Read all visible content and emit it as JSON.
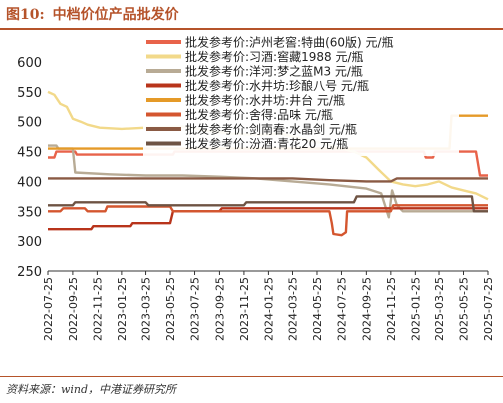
{
  "header": {
    "figure_no": "图10:",
    "title": "中档价位产品批发价"
  },
  "source": "资料来源：wind，中港证券研究所",
  "chart_data": {
    "type": "line",
    "ylim": [
      250,
      600
    ],
    "yticks": [
      250,
      300,
      350,
      400,
      450,
      500,
      550,
      600
    ],
    "xticks": [
      "2022-07-25",
      "2022-09-25",
      "2022-11-25",
      "2023-01-25",
      "2023-03-25",
      "2023-05-25",
      "2023-07-25",
      "2023-09-25",
      "2023-11-25",
      "2024-01-25",
      "2024-03-25",
      "2024-05-25",
      "2024-07-25",
      "2024-09-25",
      "2024-11-25",
      "2025-01-25",
      "2025-03-25",
      "2025-05-25",
      "2025-07-25"
    ],
    "x_start": "2022-07-25",
    "x_end": "2025-07-25",
    "grid": false,
    "legend_position": "top-center",
    "series": [
      {
        "name": "批发参考价:泸州老窖:特曲(60版) 元/瓶",
        "color": "#e8634a",
        "points": [
          [
            "2022-07-25",
            440
          ],
          [
            "2022-08-10",
            440
          ],
          [
            "2022-08-15",
            450
          ],
          [
            "2022-10-01",
            450
          ],
          [
            "2022-10-05",
            445
          ],
          [
            "2023-06-01",
            445
          ],
          [
            "2023-06-05",
            450
          ],
          [
            "2025-01-25",
            450
          ],
          [
            "2025-02-15",
            450
          ],
          [
            "2025-02-20",
            440
          ],
          [
            "2025-03-10",
            440
          ],
          [
            "2025-03-15",
            450
          ],
          [
            "2025-06-25",
            450
          ],
          [
            "2025-07-05",
            410
          ],
          [
            "2025-07-25",
            410
          ]
        ]
      },
      {
        "name": "批发参考价:习酒:窖藏1988 元/瓶",
        "color": "#f2d98a",
        "points": [
          [
            "2022-07-25",
            550
          ],
          [
            "2022-08-10",
            545
          ],
          [
            "2022-08-25",
            530
          ],
          [
            "2022-09-10",
            525
          ],
          [
            "2022-09-25",
            505
          ],
          [
            "2022-10-15",
            500
          ],
          [
            "2022-11-01",
            495
          ],
          [
            "2022-12-01",
            490
          ],
          [
            "2023-01-25",
            488
          ],
          [
            "2023-03-25",
            490
          ],
          [
            "2023-06-25",
            492
          ],
          [
            "2023-08-25",
            485
          ],
          [
            "2023-10-25",
            480
          ],
          [
            "2023-12-25",
            478
          ],
          [
            "2024-02-25",
            480
          ],
          [
            "2024-04-25",
            470
          ],
          [
            "2024-06-01",
            465
          ],
          [
            "2024-07-25",
            455
          ],
          [
            "2024-08-25",
            450
          ],
          [
            "2024-09-25",
            440
          ],
          [
            "2024-10-25",
            420
          ],
          [
            "2024-11-25",
            400
          ],
          [
            "2024-12-25",
            395
          ],
          [
            "2025-01-25",
            392
          ],
          [
            "2025-02-25",
            395
          ],
          [
            "2025-03-25",
            400
          ],
          [
            "2025-04-25",
            390
          ],
          [
            "2025-05-25",
            385
          ],
          [
            "2025-06-25",
            380
          ],
          [
            "2025-07-25",
            370
          ]
        ]
      },
      {
        "name": "批发参考价:洋河:梦之蓝M3 元/瓶",
        "color": "#b8ab95",
        "points": [
          [
            "2022-07-25",
            460
          ],
          [
            "2022-08-15",
            460
          ],
          [
            "2022-08-20",
            455
          ],
          [
            "2022-09-25",
            455
          ],
          [
            "2022-10-01",
            415
          ],
          [
            "2022-12-25",
            412
          ],
          [
            "2023-03-25",
            410
          ],
          [
            "2023-06-25",
            410
          ],
          [
            "2023-09-25",
            408
          ],
          [
            "2023-12-25",
            405
          ],
          [
            "2024-03-25",
            400
          ],
          [
            "2024-06-25",
            395
          ],
          [
            "2024-09-25",
            388
          ],
          [
            "2024-11-01",
            380
          ],
          [
            "2024-11-20",
            340
          ],
          [
            "2024-11-28",
            385
          ],
          [
            "2024-12-10",
            360
          ],
          [
            "2024-12-25",
            350
          ],
          [
            "2025-03-25",
            350
          ],
          [
            "2025-07-25",
            350
          ]
        ]
      },
      {
        "name": "批发参考价:水井坊:珍酿八号 元/瓶",
        "color": "#b8341b",
        "points": [
          [
            "2022-07-25",
            320
          ],
          [
            "2022-11-10",
            320
          ],
          [
            "2022-11-15",
            325
          ],
          [
            "2023-02-15",
            325
          ],
          [
            "2023-02-20",
            330
          ],
          [
            "2023-05-25",
            330
          ],
          [
            "2023-06-01",
            350
          ],
          [
            "2023-09-25",
            350
          ],
          [
            "2023-10-01",
            355
          ],
          [
            "2025-07-25",
            355
          ]
        ]
      },
      {
        "name": "批发参考价:水井坊:井台 元/瓶",
        "color": "#e59a28",
        "points": [
          [
            "2022-07-25",
            455
          ],
          [
            "2025-04-20",
            455
          ],
          [
            "2025-04-25",
            510
          ],
          [
            "2025-07-25",
            510
          ]
        ]
      },
      {
        "name": "批发参考价:舍得:品味 元/瓶",
        "color": "#d4562f",
        "points": [
          [
            "2022-07-25",
            350
          ],
          [
            "2022-08-25",
            350
          ],
          [
            "2022-09-01",
            355
          ],
          [
            "2022-10-25",
            355
          ],
          [
            "2022-11-01",
            350
          ],
          [
            "2022-12-15",
            350
          ],
          [
            "2022-12-20",
            358
          ],
          [
            "2023-05-25",
            358
          ],
          [
            "2023-06-01",
            350
          ],
          [
            "2024-06-25",
            350
          ],
          [
            "2024-07-01",
            330
          ],
          [
            "2024-07-05",
            312
          ],
          [
            "2024-07-25",
            310
          ],
          [
            "2024-08-05",
            315
          ],
          [
            "2024-08-08",
            350
          ],
          [
            "2024-11-25",
            350
          ],
          [
            "2024-12-01",
            360
          ],
          [
            "2025-06-25",
            360
          ],
          [
            "2025-07-25",
            360
          ]
        ]
      },
      {
        "name": "批发参考价:剑南春:水晶剑 元/瓶",
        "color": "#8a5a44",
        "points": [
          [
            "2022-07-25",
            405
          ],
          [
            "2022-09-25",
            405
          ],
          [
            "2023-01-25",
            405
          ],
          [
            "2023-09-25",
            405
          ],
          [
            "2024-03-25",
            405
          ],
          [
            "2024-06-25",
            402
          ],
          [
            "2024-09-25",
            400
          ],
          [
            "2024-11-25",
            400
          ],
          [
            "2024-12-10",
            405
          ],
          [
            "2025-07-25",
            405
          ]
        ]
      },
      {
        "name": "批发参考价:汾酒:青花20 元/瓶",
        "color": "#6e5343",
        "points": [
          [
            "2022-07-25",
            360
          ],
          [
            "2022-09-25",
            360
          ],
          [
            "2022-10-01",
            365
          ],
          [
            "2023-03-25",
            365
          ],
          [
            "2023-04-01",
            360
          ],
          [
            "2023-11-25",
            360
          ],
          [
            "2023-12-01",
            365
          ],
          [
            "2024-08-25",
            365
          ],
          [
            "2024-09-01",
            375
          ],
          [
            "2025-06-15",
            375
          ],
          [
            "2025-06-20",
            350
          ],
          [
            "2025-07-25",
            350
          ]
        ]
      }
    ]
  }
}
